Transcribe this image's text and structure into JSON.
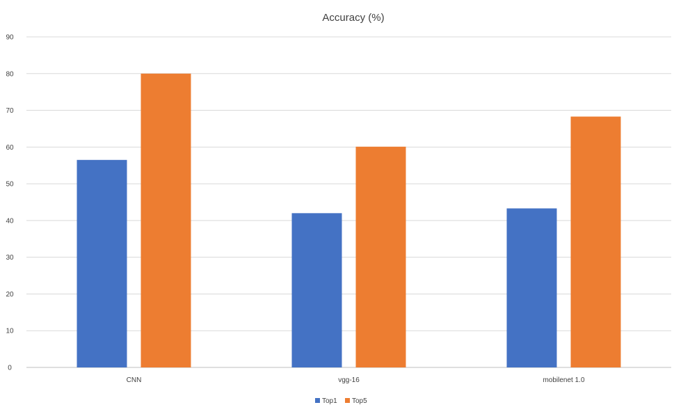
{
  "chart_data": {
    "type": "bar",
    "title": "Accuracy (%)",
    "categories": [
      "CNN",
      "vgg-16",
      "mobilenet 1.0"
    ],
    "series": [
      {
        "name": "Top1",
        "values": [
          56.5,
          42.0,
          43.3
        ],
        "color": "#4472c4"
      },
      {
        "name": "Top5",
        "values": [
          80.0,
          60.1,
          68.3
        ],
        "color": "#ed7d31"
      }
    ],
    "yticks": [
      0,
      10,
      20,
      30,
      40,
      50,
      60,
      70,
      80,
      90
    ],
    "ylim": [
      0,
      90
    ],
    "grid": true,
    "legend": "bottom-center"
  }
}
